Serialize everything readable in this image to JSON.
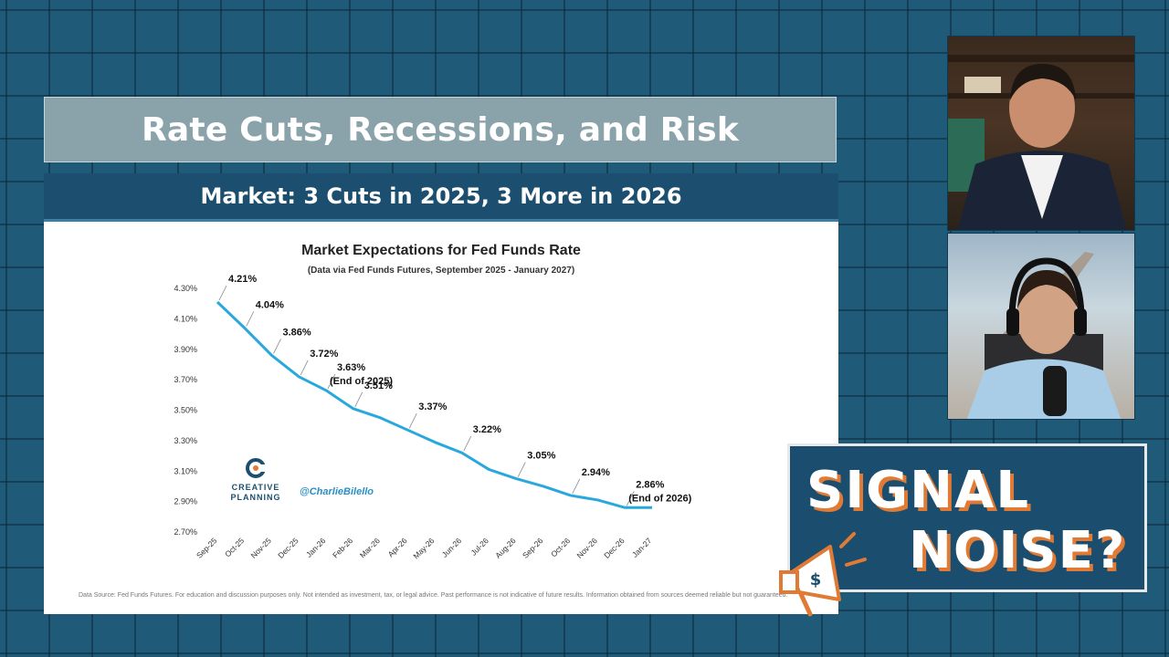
{
  "title_bar": {
    "text": "Rate Cuts, Recessions, and Risk"
  },
  "slide": {
    "header": "Market: 3 Cuts in 2025, 3 More in 2026",
    "disclaimer": "Data Source: Fed Funds Futures. For education and discussion purposes only. Not intended as investment, tax, or legal advice. Past performance is not indicative of future results. Information obtained from sources deemed reliable but not guaranteed.",
    "logo_line1": "CREATIVE",
    "logo_line2": "PLANNING",
    "handle": "@CharlieBilello"
  },
  "chart_data": {
    "type": "line",
    "title": "Market Expectations for Fed Funds Rate",
    "subtitle": "(Data via Fed Funds Futures, September 2025 - January 2027)",
    "xlabel": "",
    "ylabel": "",
    "ylim": [
      2.7,
      4.3
    ],
    "yticks": [
      "4.30%",
      "4.10%",
      "3.90%",
      "3.70%",
      "3.50%",
      "3.30%",
      "3.10%",
      "2.90%",
      "2.70%"
    ],
    "ytick_values": [
      4.3,
      4.1,
      3.9,
      3.7,
      3.5,
      3.3,
      3.1,
      2.9,
      2.7
    ],
    "categories": [
      "Sep-25",
      "Oct-25",
      "Nov-25",
      "Dec-25",
      "Jan-26",
      "Feb-26",
      "Mar-26",
      "Apr-26",
      "May-26",
      "Jun-26",
      "Jul-26",
      "Aug-26",
      "Sep-26",
      "Oct-26",
      "Nov-26",
      "Dec-26",
      "Jan-27"
    ],
    "values": [
      4.21,
      4.04,
      3.86,
      3.72,
      3.63,
      3.51,
      3.45,
      3.37,
      3.29,
      3.22,
      3.11,
      3.05,
      3.0,
      2.94,
      2.91,
      2.86,
      2.86
    ],
    "annotations": [
      {
        "index": 0,
        "label": "4.21%",
        "note": ""
      },
      {
        "index": 1,
        "label": "4.04%",
        "note": ""
      },
      {
        "index": 2,
        "label": "3.86%",
        "note": ""
      },
      {
        "index": 3,
        "label": "3.72%",
        "note": ""
      },
      {
        "index": 4,
        "label": "3.63%",
        "note": "(End of 2025)"
      },
      {
        "index": 5,
        "label": "3.51%",
        "note": ""
      },
      {
        "index": 7,
        "label": "3.37%",
        "note": ""
      },
      {
        "index": 9,
        "label": "3.22%",
        "note": ""
      },
      {
        "index": 11,
        "label": "3.05%",
        "note": ""
      },
      {
        "index": 13,
        "label": "2.94%",
        "note": ""
      },
      {
        "index": 15,
        "label": "2.86%",
        "note": "(End of 2026)"
      }
    ],
    "line_color": "#29a8dc",
    "grid": false,
    "legend": "none"
  },
  "badge": {
    "word1": "SIGNAL",
    "word2": "NOISE?",
    "icon": "megaphone-dollar-icon"
  },
  "cams": {
    "host1": "person-video-feed",
    "host2": "person-video-feed"
  },
  "colors": {
    "accent_orange": "#e07a35",
    "header_blue": "#1c4f6f",
    "background": "#1f5a78"
  }
}
